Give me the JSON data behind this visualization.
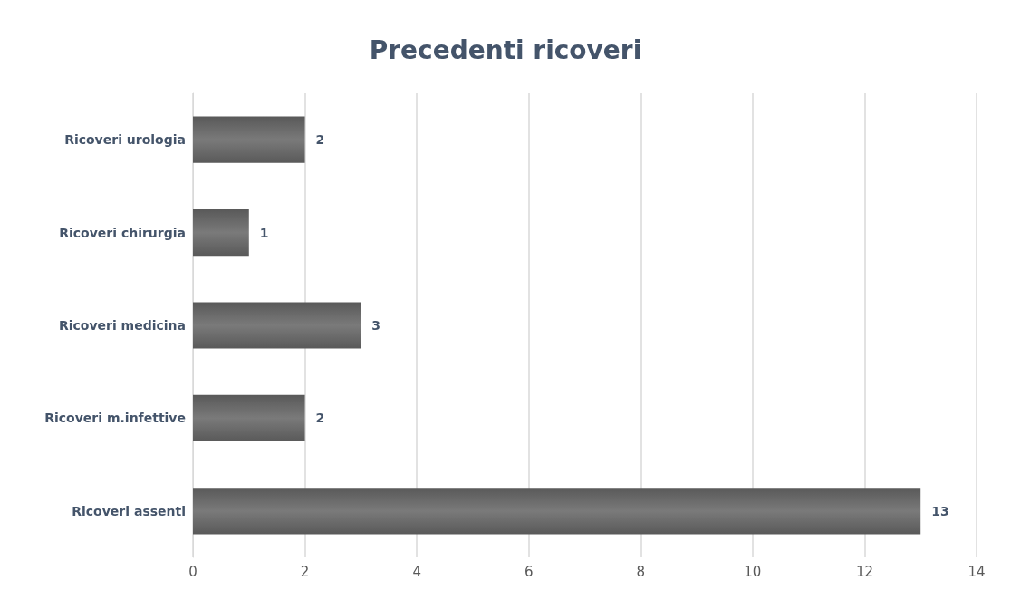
{
  "chart_data": {
    "type": "bar",
    "orientation": "horizontal",
    "title": "Precedenti ricoveri",
    "categories": [
      "Ricoveri urologia",
      "Ricoveri chirurgia",
      "Ricoveri medicina",
      "Ricoveri m.infettive",
      "Ricoveri assenti"
    ],
    "values": [
      2,
      1,
      3,
      2,
      13
    ],
    "color": "#595959",
    "xlim": [
      0,
      14
    ],
    "xticks": [
      0,
      2,
      4,
      6,
      8,
      10,
      12,
      14
    ],
    "grid": "x",
    "data_labels": true
  }
}
